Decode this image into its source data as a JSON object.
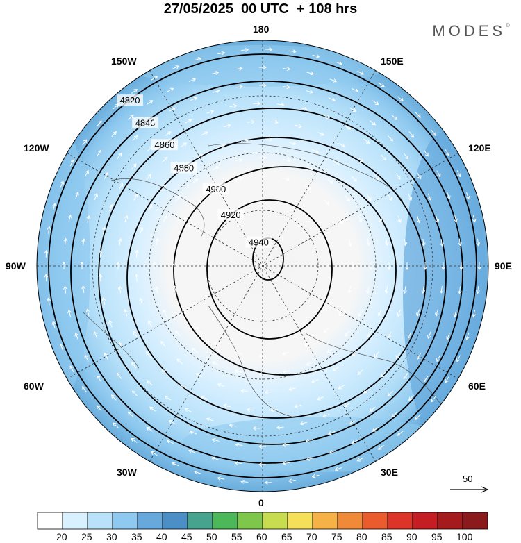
{
  "title": "27/05/2025  00 UTC  + 108 hrs",
  "brand": "MODES",
  "brand_mark": "©",
  "longitude_labels": {
    "top": "180",
    "bottom": "0",
    "left": "90W",
    "right": "90E",
    "upper_left_1": "150W",
    "upper_left_2": "120W",
    "lower_left_1": "60W",
    "lower_left_2": "30W",
    "upper_right_1": "150E",
    "upper_right_2": "120E",
    "lower_right_1": "60E",
    "lower_right_2": "30E"
  },
  "vector_reference": {
    "label": "50"
  },
  "colorbar": {
    "ticks": [
      "20",
      "25",
      "30",
      "35",
      "40",
      "45",
      "50",
      "55",
      "60",
      "65",
      "70",
      "75",
      "80",
      "85",
      "90",
      "95",
      "100"
    ],
    "colors": [
      "#ffffff",
      "#d9f0ff",
      "#b9e2fa",
      "#8fc9ef",
      "#67a9dd",
      "#4b8fc6",
      "#46a48e",
      "#4cb85a",
      "#7ec74b",
      "#c8dc4f",
      "#f5e05a",
      "#f6b246",
      "#f08a38",
      "#ea5c2d",
      "#dc3428",
      "#c41d24",
      "#a51b1d",
      "#8a1a1b"
    ]
  },
  "contours": [
    {
      "label": "4820",
      "value": 4820
    },
    {
      "label": "4840",
      "value": 4840
    },
    {
      "label": "4860",
      "value": 4860
    },
    {
      "label": "4880",
      "value": 4880
    },
    {
      "label": "4900",
      "value": 4900
    },
    {
      "label": "4920",
      "value": 4920
    },
    {
      "label": "4940",
      "value": 4940
    }
  ],
  "icons": {
    "map": "polar-stereographic-map",
    "arrow": "reference-arrow-icon"
  }
}
